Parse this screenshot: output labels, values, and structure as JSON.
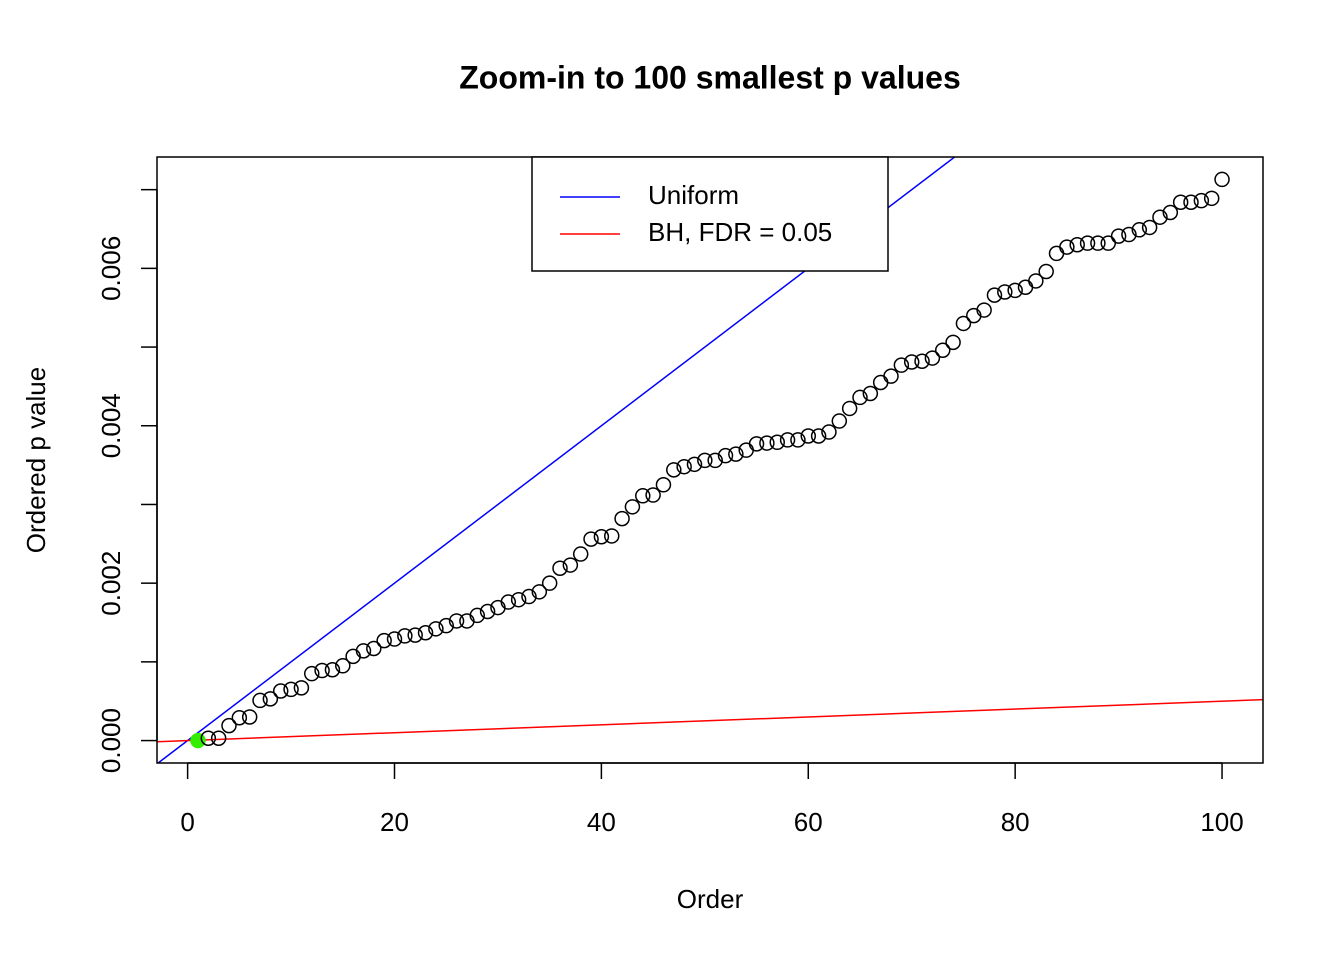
{
  "chart_data": {
    "type": "scatter",
    "title": "Zoom-in to 100 smallest p values",
    "x_label": "Order",
    "y_label": "Ordered p value",
    "x": [
      1,
      2,
      3,
      4,
      5,
      6,
      7,
      8,
      9,
      10,
      11,
      12,
      13,
      14,
      15,
      16,
      17,
      18,
      19,
      20,
      21,
      22,
      23,
      24,
      25,
      26,
      27,
      28,
      29,
      30,
      31,
      32,
      33,
      34,
      35,
      36,
      37,
      38,
      39,
      40,
      41,
      42,
      43,
      44,
      45,
      46,
      47,
      48,
      49,
      50,
      51,
      52,
      53,
      54,
      55,
      56,
      57,
      58,
      59,
      60,
      61,
      62,
      63,
      64,
      65,
      66,
      67,
      68,
      69,
      70,
      71,
      72,
      73,
      74,
      75,
      76,
      77,
      78,
      79,
      80,
      81,
      82,
      83,
      84,
      85,
      86,
      87,
      88,
      89,
      90,
      91,
      92,
      93,
      94,
      95,
      96,
      97,
      98,
      99,
      100
    ],
    "series": [
      {
        "color": "#000000",
        "values": [
          0.0,
          3e-05,
          3e-05,
          0.00019,
          0.00029,
          0.0003,
          0.00051,
          0.00053,
          0.00063,
          0.00065,
          0.00067,
          0.00085,
          0.00089,
          0.0009,
          0.00095,
          0.00107,
          0.00114,
          0.00117,
          0.00127,
          0.00129,
          0.00133,
          0.00134,
          0.00137,
          0.00142,
          0.00146,
          0.00152,
          0.00152,
          0.00159,
          0.00164,
          0.00169,
          0.00176,
          0.00179,
          0.00183,
          0.00189,
          0.002,
          0.00219,
          0.00223,
          0.00237,
          0.00256,
          0.00259,
          0.0026,
          0.00282,
          0.00297,
          0.00311,
          0.00312,
          0.00325,
          0.00344,
          0.00348,
          0.00351,
          0.00356,
          0.00356,
          0.00362,
          0.00364,
          0.00369,
          0.00377,
          0.00378,
          0.00379,
          0.00382,
          0.00382,
          0.00387,
          0.00387,
          0.00392,
          0.00406,
          0.00422,
          0.00436,
          0.00441,
          0.00455,
          0.00463,
          0.00477,
          0.00481,
          0.00482,
          0.00486,
          0.00496,
          0.00506,
          0.0053,
          0.0054,
          0.00547,
          0.00566,
          0.0057,
          0.00572,
          0.00576,
          0.00584,
          0.00596,
          0.00619,
          0.00627,
          0.0063,
          0.00632,
          0.00632,
          0.00632,
          0.00641,
          0.00643,
          0.00649,
          0.00652,
          0.00665,
          0.00671,
          0.00684,
          0.00684,
          0.00686,
          0.00689,
          0.00713
        ]
      }
    ],
    "highlight": {
      "indices": [
        0
      ],
      "color": "#33ee00"
    },
    "lines": [
      {
        "name": "Uniform",
        "color": "#0000ff",
        "intercept": 0,
        "slope": 0.0001
      },
      {
        "name": "BH, FDR = 0.05",
        "color": "#ff0000",
        "intercept": 0,
        "slope": 5e-06
      }
    ],
    "legend_position": "top",
    "xlim": [
      -2.96,
      103.96
    ],
    "xticks": [
      0,
      20,
      40,
      60,
      80,
      100
    ],
    "ylim": [
      -0.000285,
      0.007415
    ],
    "yticks": [
      {
        "value": 0,
        "label": "0.000"
      },
      {
        "value": 0.001,
        "label": null
      },
      {
        "value": 0.002,
        "label": "0.002"
      },
      {
        "value": 0.003,
        "label": null
      },
      {
        "value": 0.004,
        "label": "0.004"
      },
      {
        "value": 0.005,
        "label": null
      },
      {
        "value": 0.006,
        "label": "0.006"
      },
      {
        "value": 0.007,
        "label": null
      }
    ],
    "grid": false
  }
}
